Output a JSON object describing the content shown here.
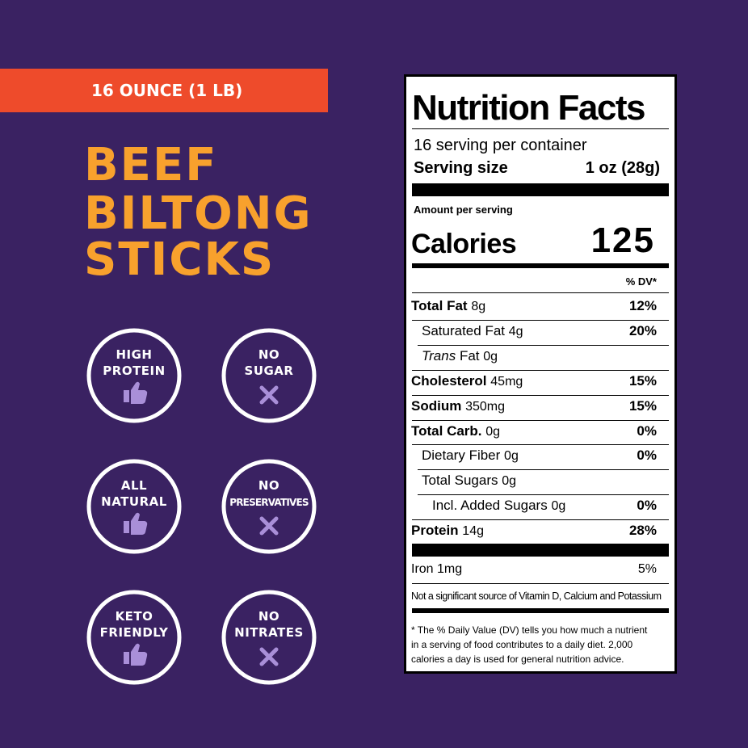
{
  "banner": "16 OUNCE (1 LB)",
  "title_lines": [
    "BEEF",
    "BILTONG",
    "STICKS"
  ],
  "badges": [
    [
      "HIGH",
      "PROTEIN"
    ],
    [
      "NO",
      "SUGAR"
    ],
    [
      "ALL",
      "NATURAL"
    ],
    [
      "NO",
      "PRESERVATIVES"
    ],
    [
      "KETO",
      "FRIENDLY"
    ],
    [
      "NO",
      "NITRATES"
    ]
  ],
  "nutrition": {
    "title": "Nutrition Facts",
    "servings": "16 serving per container",
    "serving_size_label": "Serving size",
    "serving_size": "1 oz (28g)",
    "amount_per_serving": "Amount per serving",
    "calories_label": "Calories",
    "calories": "125",
    "dv_header": "% DV*",
    "rows": [
      {
        "name": "Total Fat",
        "amount": "8g",
        "dv": "12%"
      },
      {
        "name": "Saturated Fat",
        "amount": "4g",
        "dv": "20%"
      },
      {
        "prefix": "Trans",
        "name": "Fat",
        "amount": "0g"
      },
      {
        "name": "Cholesterol",
        "amount": "45mg",
        "dv": "15%"
      },
      {
        "name": "Sodium",
        "amount": "350mg",
        "dv": "15%"
      },
      {
        "name": "Total Carb.",
        "amount": "0g",
        "dv": "0%"
      },
      {
        "name": "Dietary Fiber",
        "amount": "0g",
        "dv": "0%"
      },
      {
        "name": "Total Sugars",
        "amount": "0g"
      },
      {
        "name": "Incl. Added Sugars",
        "amount": "0g",
        "dv": "0%"
      },
      {
        "name": "Protein",
        "amount": "14g",
        "dv": "28%"
      }
    ],
    "iron": {
      "name": "Iron",
      "amount": "1mg",
      "dv": "5%"
    },
    "not_significant": "Not a significant source of Vitamin D, Calcium and Potassium",
    "footnote": [
      "* The % Daily Value (DV) tells you how much a nutrient",
      "in a serving of food contributes to a daily diet. 2,000",
      "calories a day is used for general nutrition advice."
    ]
  }
}
